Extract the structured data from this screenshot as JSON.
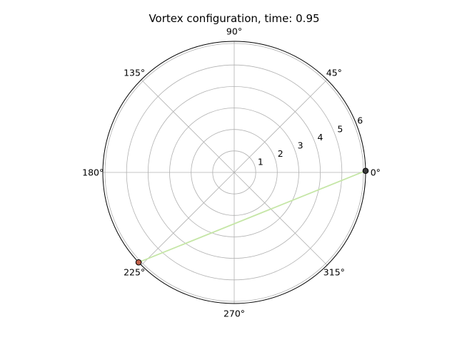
{
  "chart_data": {
    "type": "polar-scatter",
    "title": "Vortex configuration, time: 0.95",
    "theta_ticks": [
      "0°",
      "45°",
      "90°",
      "135°",
      "180°",
      "225°",
      "270°",
      "315°"
    ],
    "theta_tick_degrees": [
      0,
      45,
      90,
      135,
      180,
      225,
      270,
      315
    ],
    "r_ticks": [
      "1",
      "2",
      "3",
      "4",
      "5",
      "6"
    ],
    "r_tick_values": [
      1,
      2,
      3,
      4,
      5,
      6
    ],
    "rlim": [
      0,
      6.1
    ],
    "rlabel_position_deg": 22.5,
    "grid": true,
    "points": [
      {
        "theta_deg": 0.7,
        "r": 6.1,
        "color": "#3a3a3a"
      },
      {
        "theta_deg": 223.3,
        "r": 6.1,
        "color": "#c0604a"
      }
    ],
    "segments": [
      {
        "from_point": 0,
        "to_point": 1,
        "color": "#c5e6a6"
      }
    ]
  }
}
